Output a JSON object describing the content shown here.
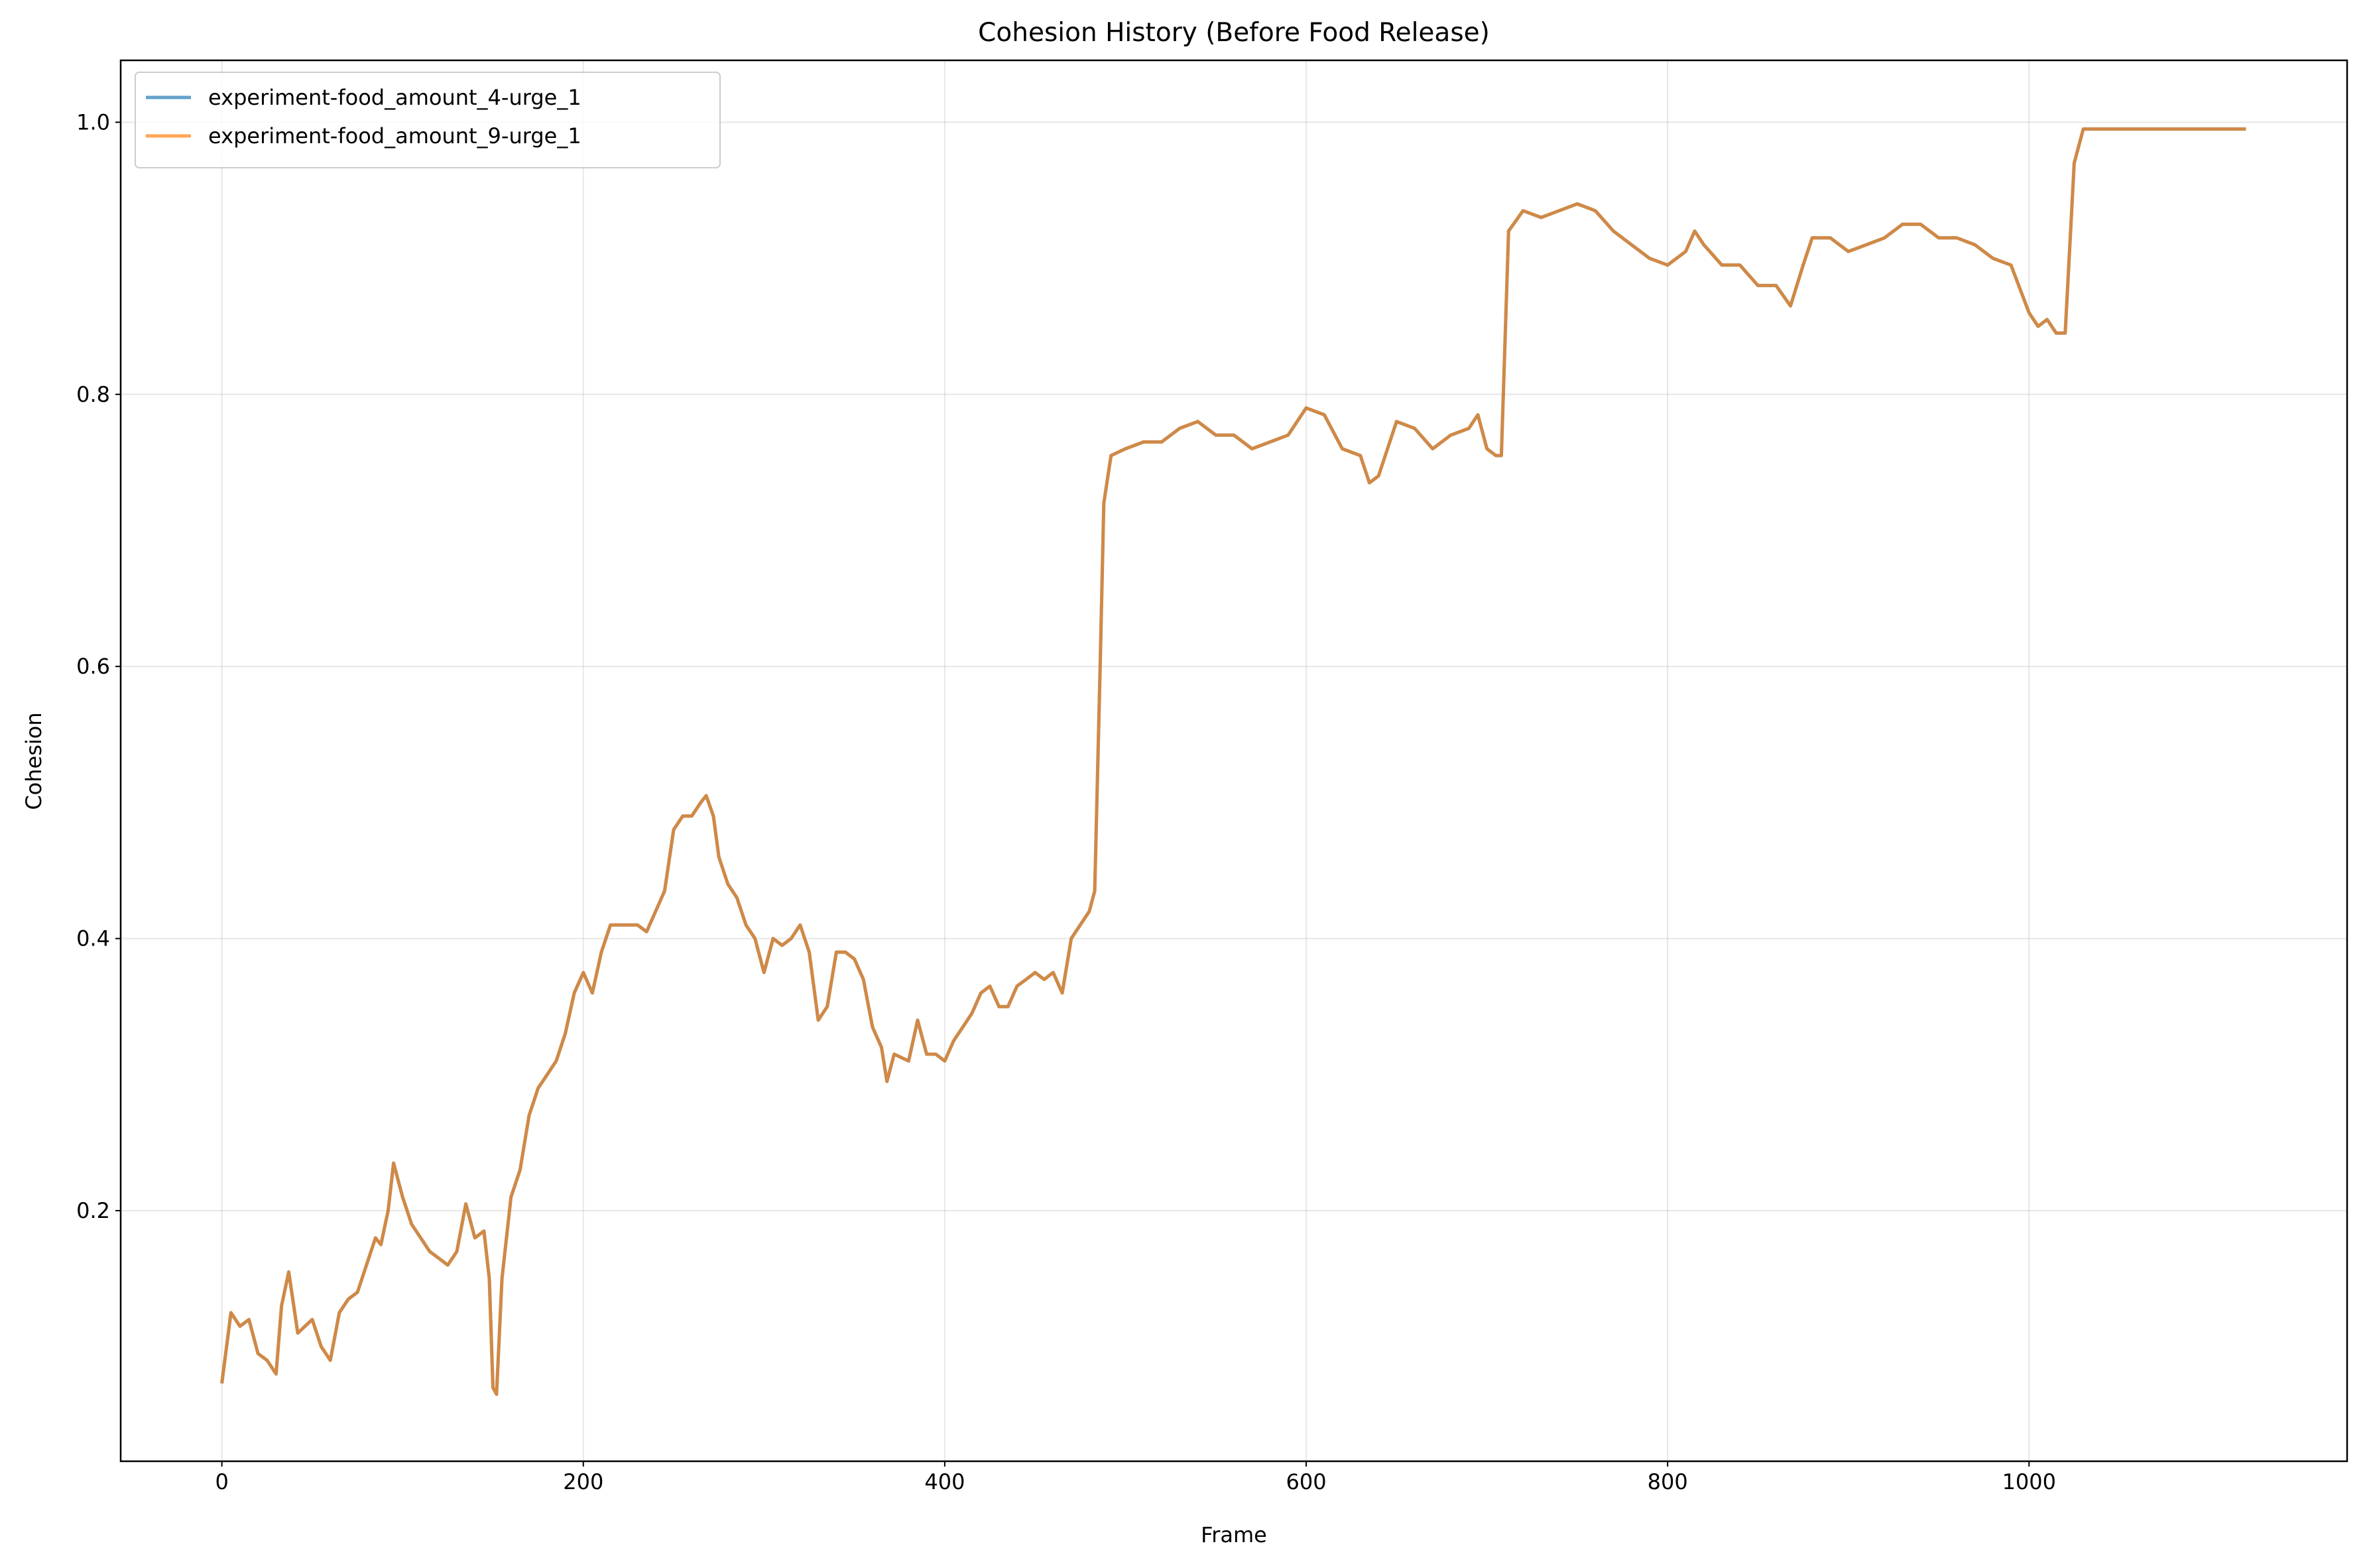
{
  "chart_data": {
    "type": "line",
    "title": "Cohesion History (Before Food Release)",
    "x_label": "Frame",
    "y_label": "Cohesion",
    "xlim": [
      -56,
      1176
    ],
    "ylim": [
      0.0158,
      1.0455
    ],
    "xticks": [
      0,
      200,
      400,
      600,
      800,
      1000
    ],
    "yticks": [
      0.2,
      0.4,
      0.6,
      0.8,
      {
        "value": 1,
        "label": "1.0"
      }
    ],
    "grid": true,
    "legend": "upper left",
    "x": [
      0,
      5,
      10,
      15,
      20,
      25,
      30,
      33,
      37,
      42,
      50,
      55,
      60,
      65,
      70,
      75,
      80,
      85,
      88,
      92,
      95,
      100,
      105,
      110,
      115,
      120,
      125,
      130,
      135,
      140,
      145,
      148,
      150,
      152,
      155,
      160,
      165,
      170,
      175,
      180,
      185,
      190,
      195,
      200,
      205,
      210,
      215,
      220,
      230,
      235,
      240,
      245,
      250,
      255,
      260,
      265,
      268,
      272,
      275,
      280,
      285,
      290,
      295,
      300,
      305,
      310,
      315,
      320,
      325,
      330,
      335,
      340,
      345,
      350,
      355,
      360,
      365,
      368,
      372,
      380,
      385,
      390,
      395,
      400,
      405,
      410,
      415,
      420,
      425,
      430,
      435,
      440,
      445,
      450,
      455,
      460,
      465,
      470,
      475,
      480,
      483,
      486,
      488,
      492,
      500,
      510,
      520,
      530,
      540,
      550,
      560,
      570,
      580,
      590,
      600,
      610,
      620,
      630,
      635,
      640,
      650,
      660,
      670,
      680,
      690,
      695,
      700,
      705,
      708,
      712,
      720,
      730,
      740,
      750,
      760,
      770,
      780,
      790,
      800,
      810,
      815,
      820,
      830,
      840,
      850,
      860,
      868,
      875,
      880,
      890,
      900,
      910,
      920,
      930,
      940,
      950,
      960,
      970,
      980,
      990,
      1000,
      1005,
      1010,
      1015,
      1020,
      1025,
      1030,
      1050,
      1100,
      1120
    ],
    "series": [
      {
        "name": "experiment-food_amount_4-urge_1",
        "color": "#1f77b4",
        "values": [
          0.073,
          0.125,
          0.115,
          0.12,
          0.095,
          0.09,
          0.08,
          0.13,
          0.155,
          0.11,
          0.12,
          0.1,
          0.09,
          0.125,
          0.135,
          0.14,
          0.16,
          0.18,
          0.175,
          0.2,
          0.235,
          0.21,
          0.19,
          0.18,
          0.17,
          0.165,
          0.16,
          0.17,
          0.205,
          0.18,
          0.185,
          0.15,
          0.07,
          0.065,
          0.15,
          0.21,
          0.23,
          0.27,
          0.29,
          0.3,
          0.31,
          0.33,
          0.36,
          0.375,
          0.36,
          0.39,
          0.41,
          0.41,
          0.41,
          0.405,
          0.42,
          0.435,
          0.48,
          0.49,
          0.49,
          0.5,
          0.505,
          0.49,
          0.46,
          0.44,
          0.43,
          0.41,
          0.4,
          0.375,
          0.4,
          0.395,
          0.4,
          0.41,
          0.39,
          0.34,
          0.35,
          0.39,
          0.39,
          0.385,
          0.37,
          0.335,
          0.32,
          0.295,
          0.315,
          0.31,
          0.34,
          0.315,
          0.315,
          0.31,
          0.325,
          0.335,
          0.345,
          0.36,
          0.365,
          0.35,
          0.35,
          0.365,
          0.37,
          0.375,
          0.37,
          0.375,
          0.36,
          0.4,
          0.41,
          0.42,
          0.435,
          0.6,
          0.72,
          0.755,
          0.76,
          0.765,
          0.765,
          0.775,
          0.78,
          0.77,
          0.77,
          0.76,
          0.765,
          0.77,
          0.79,
          0.785,
          0.76,
          0.755,
          0.735,
          0.74,
          0.78,
          0.775,
          0.76,
          0.77,
          0.775,
          0.785,
          0.76,
          0.755,
          0.755,
          0.92,
          0.935,
          0.93,
          0.935,
          0.94,
          0.935,
          0.92,
          0.91,
          0.9,
          0.895,
          0.905,
          0.92,
          0.91,
          0.895,
          0.895,
          0.88,
          0.88,
          0.865,
          0.895,
          0.915,
          0.915,
          0.905,
          0.91,
          0.915,
          0.925,
          0.925,
          0.915,
          0.915,
          0.91,
          0.9,
          0.895,
          0.86,
          0.85,
          0.855,
          0.845,
          0.845,
          0.97,
          0.995,
          0.995,
          0.995,
          0.995
        ]
      },
      {
        "name": "experiment-food_amount_9-urge_1",
        "color": "#ff7f0e",
        "values": [
          0.073,
          0.125,
          0.115,
          0.12,
          0.095,
          0.09,
          0.08,
          0.13,
          0.155,
          0.11,
          0.12,
          0.1,
          0.09,
          0.125,
          0.135,
          0.14,
          0.16,
          0.18,
          0.175,
          0.2,
          0.235,
          0.21,
          0.19,
          0.18,
          0.17,
          0.165,
          0.16,
          0.17,
          0.205,
          0.18,
          0.185,
          0.15,
          0.07,
          0.065,
          0.15,
          0.21,
          0.23,
          0.27,
          0.29,
          0.3,
          0.31,
          0.33,
          0.36,
          0.375,
          0.36,
          0.39,
          0.41,
          0.41,
          0.41,
          0.405,
          0.42,
          0.435,
          0.48,
          0.49,
          0.49,
          0.5,
          0.505,
          0.49,
          0.46,
          0.44,
          0.43,
          0.41,
          0.4,
          0.375,
          0.4,
          0.395,
          0.4,
          0.41,
          0.39,
          0.34,
          0.35,
          0.39,
          0.39,
          0.385,
          0.37,
          0.335,
          0.32,
          0.295,
          0.315,
          0.31,
          0.34,
          0.315,
          0.315,
          0.31,
          0.325,
          0.335,
          0.345,
          0.36,
          0.365,
          0.35,
          0.35,
          0.365,
          0.37,
          0.375,
          0.37,
          0.375,
          0.36,
          0.4,
          0.41,
          0.42,
          0.435,
          0.6,
          0.72,
          0.755,
          0.76,
          0.765,
          0.765,
          0.775,
          0.78,
          0.77,
          0.77,
          0.76,
          0.765,
          0.77,
          0.79,
          0.785,
          0.76,
          0.755,
          0.735,
          0.74,
          0.78,
          0.775,
          0.76,
          0.77,
          0.775,
          0.785,
          0.76,
          0.755,
          0.755,
          0.92,
          0.935,
          0.93,
          0.935,
          0.94,
          0.935,
          0.92,
          0.91,
          0.9,
          0.895,
          0.905,
          0.92,
          0.91,
          0.895,
          0.895,
          0.88,
          0.88,
          0.865,
          0.895,
          0.915,
          0.915,
          0.905,
          0.91,
          0.915,
          0.925,
          0.925,
          0.915,
          0.915,
          0.91,
          0.9,
          0.895,
          0.86,
          0.85,
          0.855,
          0.845,
          0.845,
          0.97,
          0.995,
          0.995,
          0.995,
          0.995
        ]
      }
    ]
  }
}
